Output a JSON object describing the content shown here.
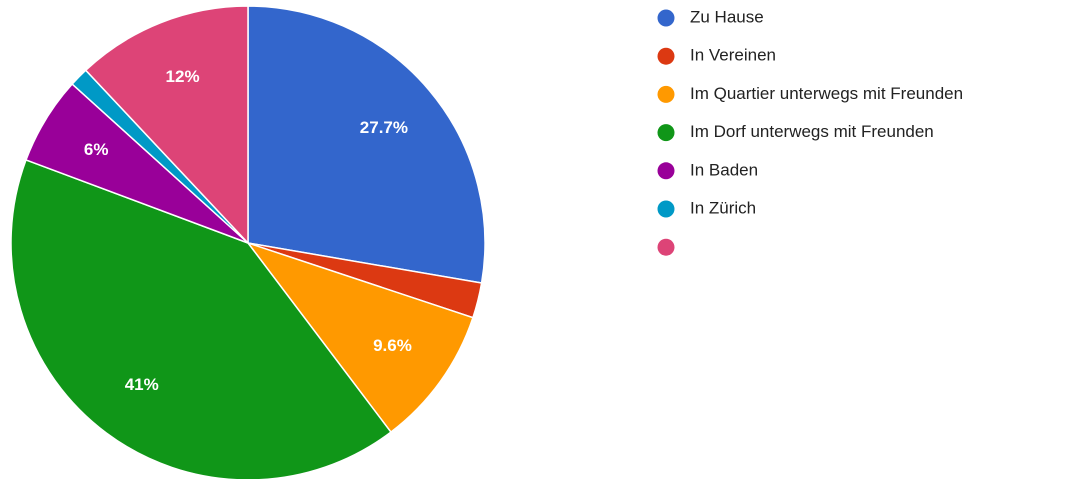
{
  "chart_data": {
    "type": "pie",
    "categories": [
      "Zu Hause",
      "In Vereinen",
      "Im Quartier unterwegs mit Freunden",
      "Im Dorf unterwegs mit Freunden",
      "In Baden",
      "In Zürich",
      null
    ],
    "values": [
      27.7,
      2.4,
      9.6,
      41,
      6,
      1.3,
      12
    ],
    "value_labels": [
      "27.7%",
      null,
      "9.6%",
      "41%",
      "6%",
      null,
      "12%"
    ],
    "colors": [
      "#3366cc",
      "#dc3912",
      "#ff9900",
      "#109618",
      "#990099",
      "#0099c6",
      "#dd4477"
    ],
    "legend": "right"
  }
}
